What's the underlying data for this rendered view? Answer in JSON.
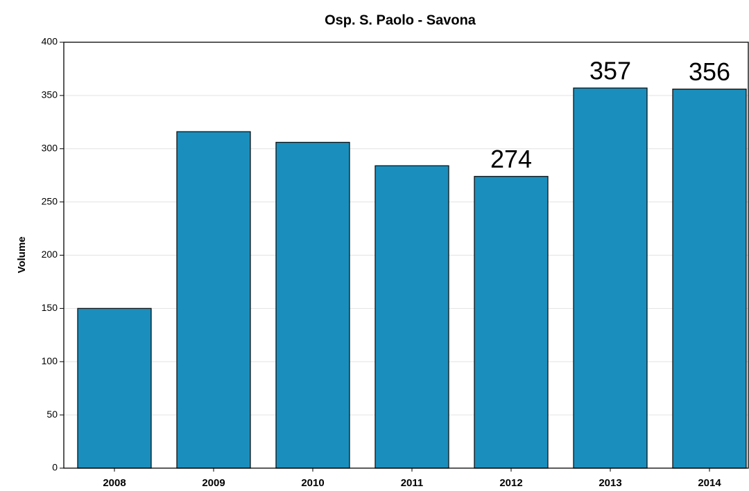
{
  "chart_data": {
    "type": "bar",
    "title": "Osp. S. Paolo - Savona",
    "y_label": "Volume",
    "categories": [
      "2008",
      "2009",
      "2010",
      "2011",
      "2012",
      "2013",
      "2014"
    ],
    "values": [
      150,
      316,
      306,
      284,
      274,
      357,
      356
    ],
    "value_labels": [
      null,
      null,
      null,
      null,
      "274",
      "357",
      "356"
    ],
    "color": "#1a8fbd",
    "ylim": [
      0,
      400
    ],
    "yticks": [
      0,
      50,
      100,
      150,
      200,
      250,
      300,
      350,
      400
    ],
    "grid": true
  }
}
